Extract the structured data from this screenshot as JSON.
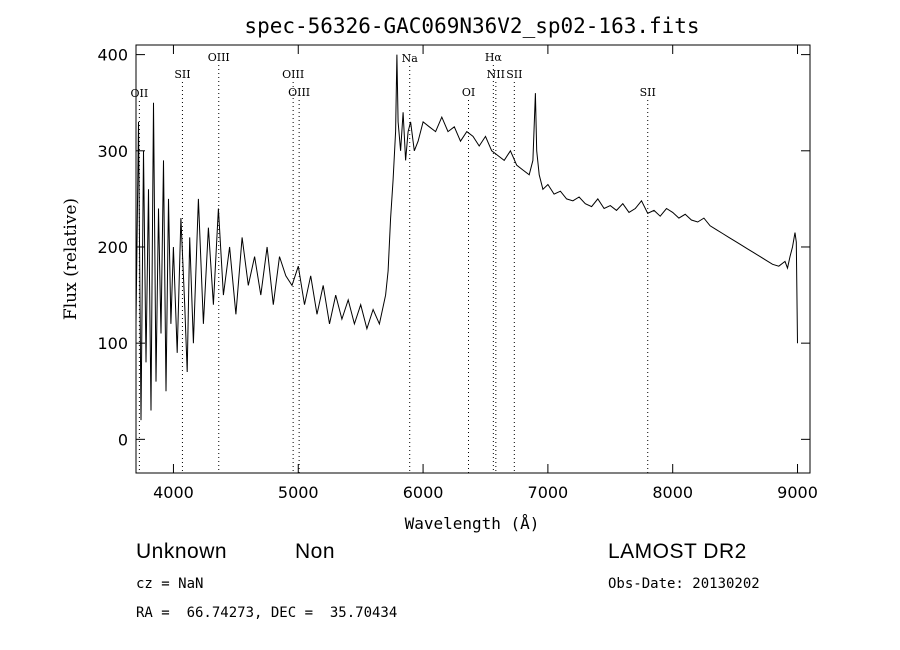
{
  "chart_data": {
    "type": "line",
    "title": "spec-56326-GAC069N36V2_sp02-163.fits",
    "xlabel": "Wavelength (Å)",
    "ylabel": "Flux (relative)",
    "xlim": [
      3700,
      9100
    ],
    "ylim": [
      -35,
      410
    ],
    "x_ticks": [
      4000,
      5000,
      6000,
      7000,
      8000,
      9000
    ],
    "y_ticks": [
      0,
      100,
      200,
      300,
      400
    ],
    "grid": false,
    "line_markers": [
      {
        "label": "OII",
        "wavelength": 3727,
        "row": 0
      },
      {
        "label": "SII",
        "wavelength": 4072,
        "row": 1
      },
      {
        "label": "OIII",
        "wavelength": 4363,
        "row": 2
      },
      {
        "label": "OIII",
        "wavelength": 4959,
        "row": 3
      },
      {
        "label": "OIII",
        "wavelength": 5007,
        "row": 4
      },
      {
        "label": "Na",
        "wavelength": 5893,
        "row": 5
      },
      {
        "label": "OI",
        "wavelength": 6364,
        "row": 6
      },
      {
        "label": "Hα",
        "wavelength": 6563,
        "row": 7
      },
      {
        "label": "NII",
        "wavelength": 6583,
        "row": 8
      },
      {
        "label": "SII",
        "wavelength": 6731,
        "row": 9
      },
      {
        "label": "SII",
        "wavelength": 7800,
        "row": 10
      }
    ],
    "series": [
      {
        "x": [
          3700,
          3720,
          3740,
          3760,
          3780,
          3800,
          3820,
          3840,
          3860,
          3880,
          3900,
          3920,
          3940,
          3960,
          3980,
          4000,
          4030,
          4060,
          4090,
          4110,
          4130,
          4160,
          4200,
          4240,
          4280,
          4320,
          4360,
          4400,
          4450,
          4500,
          4550,
          4600,
          4650,
          4700,
          4750,
          4800,
          4850,
          4900,
          4950,
          5000,
          5050,
          5100,
          5150,
          5200,
          5250,
          5300,
          5350,
          5400,
          5450,
          5500,
          5550,
          5600,
          5650,
          5700,
          5720,
          5740,
          5760,
          5780,
          5790,
          5800,
          5820,
          5840,
          5860,
          5880,
          5900,
          5930,
          5960,
          6000,
          6050,
          6100,
          6150,
          6200,
          6250,
          6300,
          6350,
          6400,
          6450,
          6500,
          6550,
          6600,
          6650,
          6700,
          6750,
          6800,
          6850,
          6880,
          6900,
          6910,
          6930,
          6960,
          7000,
          7050,
          7100,
          7150,
          7200,
          7250,
          7300,
          7350,
          7400,
          7450,
          7500,
          7550,
          7600,
          7650,
          7700,
          7750,
          7800,
          7850,
          7900,
          7950,
          8000,
          8050,
          8100,
          8150,
          8200,
          8250,
          8300,
          8350,
          8400,
          8450,
          8500,
          8550,
          8600,
          8650,
          8700,
          8750,
          8800,
          8850,
          8900,
          8920,
          8940,
          8960,
          8980,
          8990,
          9000
        ],
        "y": [
          120,
          330,
          20,
          300,
          80,
          260,
          30,
          350,
          60,
          240,
          110,
          290,
          50,
          250,
          120,
          200,
          90,
          230,
          140,
          70,
          210,
          100,
          250,
          120,
          220,
          140,
          240,
          150,
          200,
          130,
          210,
          160,
          190,
          150,
          200,
          140,
          190,
          170,
          160,
          180,
          140,
          170,
          130,
          160,
          120,
          150,
          125,
          145,
          120,
          140,
          115,
          135,
          120,
          150,
          175,
          230,
          270,
          320,
          400,
          330,
          300,
          340,
          290,
          320,
          330,
          300,
          310,
          330,
          325,
          320,
          335,
          320,
          325,
          310,
          320,
          315,
          305,
          315,
          300,
          295,
          290,
          300,
          285,
          280,
          275,
          290,
          360,
          300,
          275,
          260,
          265,
          255,
          258,
          250,
          248,
          252,
          245,
          242,
          250,
          240,
          243,
          238,
          245,
          236,
          240,
          248,
          235,
          238,
          232,
          240,
          236,
          230,
          234,
          228,
          226,
          230,
          222,
          218,
          214,
          210,
          206,
          202,
          198,
          194,
          190,
          186,
          182,
          180,
          185,
          178,
          190,
          200,
          215,
          205,
          100
        ]
      }
    ]
  },
  "footer": {
    "object_class": "Unknown",
    "subclass": "Non",
    "redshift": "cz = NaN",
    "coordinates": "RA =  66.74273, DEC =  35.70434",
    "survey": "LAMOST DR2",
    "obs_date": "Obs-Date: 20130202"
  }
}
